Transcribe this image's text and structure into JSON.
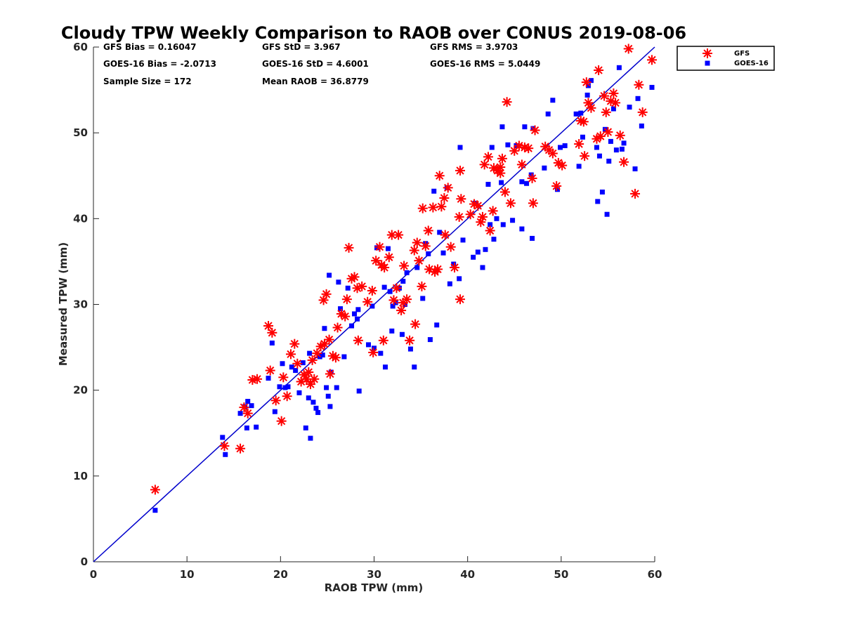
{
  "chart_data": {
    "type": "scatter",
    "title": "Cloudy TPW Weekly Comparison to RAOB over CONUS 2019-08-06",
    "xlabel": "RAOB TPW (mm)",
    "ylabel": "Measured TPW (mm)",
    "xlim": [
      0,
      60
    ],
    "ylim": [
      0,
      60
    ],
    "xticks": [
      0,
      10,
      20,
      30,
      40,
      50,
      60
    ],
    "yticks": [
      0,
      10,
      20,
      30,
      40,
      50,
      60
    ],
    "grid": false,
    "legend_position": "outside-top-right",
    "reference_line": {
      "x": [
        0,
        60
      ],
      "y": [
        0,
        60
      ],
      "color": "#0000cc"
    },
    "stats": [
      {
        "label": "GFS Bias = 0.16047"
      },
      {
        "label": "GFS StD = 3.967"
      },
      {
        "label": "GFS RMS = 3.9703"
      },
      {
        "label": "GOES-16 Bias = -2.0713"
      },
      {
        "label": "GOES-16 StD = 4.6001"
      },
      {
        "label": "GOES-16 RMS = 5.0449"
      },
      {
        "label": "Sample Size = 172"
      },
      {
        "label": "Mean RAOB = 36.8779"
      }
    ],
    "series": [
      {
        "name": "GFS",
        "color": "#ff0000",
        "marker": "asterisk",
        "points": [
          [
            6.6,
            8.4
          ],
          [
            14,
            13.5
          ],
          [
            15.7,
            13.2
          ],
          [
            16.1,
            18
          ],
          [
            16.5,
            17.3
          ],
          [
            17,
            21.2
          ],
          [
            17.5,
            21.3
          ],
          [
            18.7,
            27.5
          ],
          [
            19.1,
            26.7
          ],
          [
            18.9,
            22.3
          ],
          [
            19.5,
            18.8
          ],
          [
            20.1,
            16.4
          ],
          [
            20.3,
            21.5
          ],
          [
            20.7,
            19.3
          ],
          [
            21.1,
            24.2
          ],
          [
            21.5,
            25.4
          ],
          [
            21.8,
            23.1
          ],
          [
            22.2,
            21
          ],
          [
            22.5,
            21.8
          ],
          [
            22.8,
            21.3
          ],
          [
            23,
            22.1
          ],
          [
            23.2,
            20.7
          ],
          [
            23.4,
            23.5
          ],
          [
            23.6,
            21.3
          ],
          [
            23.9,
            24.3
          ],
          [
            24.3,
            25.1
          ],
          [
            24.7,
            25.4
          ],
          [
            24.6,
            30.5
          ],
          [
            24.9,
            31.2
          ],
          [
            25.2,
            25.9
          ],
          [
            25.3,
            21.9
          ],
          [
            25.6,
            24
          ],
          [
            25.9,
            23.8
          ],
          [
            26.1,
            27.3
          ],
          [
            26.5,
            28.9
          ],
          [
            26.9,
            28.6
          ],
          [
            27.1,
            30.6
          ],
          [
            27.3,
            36.6
          ],
          [
            27.6,
            33
          ],
          [
            27.9,
            33.2
          ],
          [
            28.2,
            31.9
          ],
          [
            28.3,
            25.8
          ],
          [
            28.7,
            32.1
          ],
          [
            29.3,
            30.3
          ],
          [
            29.8,
            31.6
          ],
          [
            29.9,
            24.4
          ],
          [
            30.2,
            35.1
          ],
          [
            30.6,
            36.7
          ],
          [
            30.8,
            34.6
          ],
          [
            31.1,
            34.3
          ],
          [
            31,
            25.8
          ],
          [
            31.6,
            35.5
          ],
          [
            31.9,
            38.1
          ],
          [
            32.1,
            30.5
          ],
          [
            32.4,
            31.9
          ],
          [
            32.6,
            38.1
          ],
          [
            32.9,
            29.3
          ],
          [
            33.1,
            30.2
          ],
          [
            33.2,
            34.5
          ],
          [
            33.5,
            30.6
          ],
          [
            33.8,
            25.8
          ],
          [
            34.3,
            36.3
          ],
          [
            34.4,
            27.7
          ],
          [
            34.6,
            37.2
          ],
          [
            34.8,
            35.1
          ],
          [
            35.1,
            32.1
          ],
          [
            35.2,
            41.2
          ],
          [
            35.5,
            36.8
          ],
          [
            35.8,
            38.6
          ],
          [
            35.9,
            34.1
          ],
          [
            36.3,
            41.3
          ],
          [
            36.5,
            33.8
          ],
          [
            36.8,
            34.1
          ],
          [
            37,
            45
          ],
          [
            37.2,
            41.4
          ],
          [
            37.5,
            42.4
          ],
          [
            37.6,
            38.1
          ],
          [
            37.9,
            43.6
          ],
          [
            38.2,
            36.7
          ],
          [
            38.6,
            34.3
          ],
          [
            39.1,
            40.2
          ],
          [
            39.2,
            45.6
          ],
          [
            39.3,
            42.3
          ],
          [
            39.2,
            30.6
          ],
          [
            40.3,
            40.5
          ],
          [
            40.7,
            41.7
          ],
          [
            41.1,
            41.5
          ],
          [
            41.4,
            39.6
          ],
          [
            41.6,
            40.2
          ],
          [
            41.8,
            46.3
          ],
          [
            42.2,
            47.2
          ],
          [
            42.4,
            38.6
          ],
          [
            42.7,
            40.9
          ],
          [
            42.8,
            45.9
          ],
          [
            43.2,
            45.6
          ],
          [
            43.5,
            46
          ],
          [
            43.5,
            45.3
          ],
          [
            43.7,
            47
          ],
          [
            44,
            43.1
          ],
          [
            44.2,
            53.6
          ],
          [
            44.6,
            41.8
          ],
          [
            45,
            47.9
          ],
          [
            45.5,
            48.5
          ],
          [
            45.8,
            46.3
          ],
          [
            46.1,
            48.3
          ],
          [
            46.5,
            48.2
          ],
          [
            46.9,
            44.7
          ],
          [
            47,
            41.8
          ],
          [
            47.2,
            50.3
          ],
          [
            48.3,
            48.4
          ],
          [
            48.7,
            48
          ],
          [
            49.1,
            47.6
          ],
          [
            49.5,
            43.8
          ],
          [
            49.7,
            46.5
          ],
          [
            50.1,
            46.2
          ],
          [
            51.9,
            48.7
          ],
          [
            52.1,
            51.4
          ],
          [
            52.4,
            51.3
          ],
          [
            52.5,
            47.3
          ],
          [
            52.7,
            55.9
          ],
          [
            52.9,
            53.5
          ],
          [
            53.2,
            52.9
          ],
          [
            53.8,
            49.3
          ],
          [
            54,
            57.3
          ],
          [
            54.2,
            49.6
          ],
          [
            54.6,
            54.3
          ],
          [
            54.8,
            52.4
          ],
          [
            55,
            50.1
          ],
          [
            55.3,
            53.7
          ],
          [
            55.6,
            54.6
          ],
          [
            55.8,
            53.5
          ],
          [
            56.3,
            49.7
          ],
          [
            56.7,
            46.6
          ],
          [
            57.2,
            59.8
          ],
          [
            57.9,
            42.9
          ],
          [
            58.3,
            55.6
          ],
          [
            58.7,
            52.4
          ],
          [
            59.7,
            58.5
          ]
        ]
      },
      {
        "name": "GOES-16",
        "color": "#0000ff",
        "marker": "square",
        "points": [
          [
            6.6,
            6
          ],
          [
            13.8,
            14.5
          ],
          [
            14.1,
            12.5
          ],
          [
            15.7,
            17.3
          ],
          [
            16.2,
            18.1
          ],
          [
            16.4,
            15.6
          ],
          [
            16.5,
            18.7
          ],
          [
            16.9,
            18.2
          ],
          [
            17.4,
            15.7
          ],
          [
            18.7,
            21.4
          ],
          [
            19.1,
            25.5
          ],
          [
            19.4,
            17.5
          ],
          [
            19.9,
            20.4
          ],
          [
            20.2,
            23.1
          ],
          [
            20.5,
            20.3
          ],
          [
            20.8,
            20.4
          ],
          [
            21.2,
            22.7
          ],
          [
            21.6,
            22.3
          ],
          [
            22,
            19.7
          ],
          [
            22.4,
            23.2
          ],
          [
            22.7,
            15.6
          ],
          [
            23,
            19.1
          ],
          [
            23.1,
            24.3
          ],
          [
            23.2,
            14.4
          ],
          [
            23.5,
            18.6
          ],
          [
            23.8,
            17.9
          ],
          [
            24,
            17.4
          ],
          [
            24.2,
            23.9
          ],
          [
            24.5,
            24.1
          ],
          [
            24.7,
            27.2
          ],
          [
            24.9,
            20.3
          ],
          [
            25.1,
            19.3
          ],
          [
            25.3,
            18.1
          ],
          [
            25.4,
            22.1
          ],
          [
            25.2,
            33.4
          ],
          [
            26,
            20.3
          ],
          [
            26.2,
            32.6
          ],
          [
            26.4,
            29.5
          ],
          [
            26.8,
            23.9
          ],
          [
            27.2,
            31.9
          ],
          [
            27.6,
            27.5
          ],
          [
            27.9,
            28.9
          ],
          [
            28.2,
            28.3
          ],
          [
            28.4,
            19.9
          ],
          [
            28.3,
            29.4
          ],
          [
            29.4,
            25.3
          ],
          [
            29.8,
            29.8
          ],
          [
            30,
            24.9
          ],
          [
            30.3,
            36.6
          ],
          [
            30.7,
            24.3
          ],
          [
            31.1,
            32
          ],
          [
            31.2,
            22.7
          ],
          [
            31.5,
            36.5
          ],
          [
            31.7,
            31.5
          ],
          [
            31.9,
            26.9
          ],
          [
            32,
            29.8
          ],
          [
            32.3,
            30.2
          ],
          [
            32.7,
            31.9
          ],
          [
            33,
            26.5
          ],
          [
            33.1,
            32.7
          ],
          [
            33.3,
            30
          ],
          [
            33.5,
            33.7
          ],
          [
            33.9,
            24.8
          ],
          [
            34.3,
            22.7
          ],
          [
            34.6,
            34.3
          ],
          [
            35.2,
            30.7
          ],
          [
            35.5,
            37.1
          ],
          [
            35.8,
            35.9
          ],
          [
            36,
            25.9
          ],
          [
            36.4,
            43.2
          ],
          [
            36.7,
            27.6
          ],
          [
            37,
            38.4
          ],
          [
            37.4,
            36
          ],
          [
            37.8,
            43.6
          ],
          [
            38.1,
            32.4
          ],
          [
            38.5,
            34.7
          ],
          [
            39.1,
            33
          ],
          [
            39.2,
            48.3
          ],
          [
            39.5,
            37.5
          ],
          [
            40.6,
            35.5
          ],
          [
            40.8,
            41.8
          ],
          [
            41.1,
            36.1
          ],
          [
            41.6,
            34.3
          ],
          [
            41.9,
            36.4
          ],
          [
            42.2,
            44
          ],
          [
            42.4,
            39.3
          ],
          [
            42.6,
            48.3
          ],
          [
            42.8,
            37.6
          ],
          [
            43.1,
            40
          ],
          [
            43.6,
            44.2
          ],
          [
            43.7,
            50.7
          ],
          [
            43.8,
            39.3
          ],
          [
            44.3,
            48.6
          ],
          [
            44.8,
            39.8
          ],
          [
            45.2,
            48.5
          ],
          [
            45.8,
            38.8
          ],
          [
            45.8,
            44.3
          ],
          [
            46.1,
            50.7
          ],
          [
            46.3,
            44.1
          ],
          [
            46.8,
            45.1
          ],
          [
            46.9,
            37.7
          ],
          [
            47,
            50.5
          ],
          [
            48.2,
            45.9
          ],
          [
            48.6,
            52.2
          ],
          [
            49.1,
            53.8
          ],
          [
            49.6,
            43.4
          ],
          [
            49.9,
            48.3
          ],
          [
            50.4,
            48.5
          ],
          [
            51.6,
            52.2
          ],
          [
            51.9,
            46.1
          ],
          [
            52.1,
            52.3
          ],
          [
            52.3,
            49.5
          ],
          [
            52.8,
            54.4
          ],
          [
            52.9,
            55.5
          ],
          [
            53.2,
            56.1
          ],
          [
            53.8,
            48.3
          ],
          [
            53.9,
            42
          ],
          [
            54.1,
            47.3
          ],
          [
            54.4,
            43.1
          ],
          [
            54.7,
            50.4
          ],
          [
            54.9,
            40.5
          ],
          [
            55.1,
            46.7
          ],
          [
            55.3,
            49
          ],
          [
            55.6,
            52.8
          ],
          [
            55.9,
            48
          ],
          [
            56.2,
            57.6
          ],
          [
            56.5,
            48.1
          ],
          [
            56.7,
            48.8
          ],
          [
            57.3,
            53
          ],
          [
            57.9,
            45.8
          ],
          [
            58.2,
            54
          ],
          [
            58.6,
            50.8
          ],
          [
            59.7,
            55.3
          ]
        ]
      }
    ]
  }
}
